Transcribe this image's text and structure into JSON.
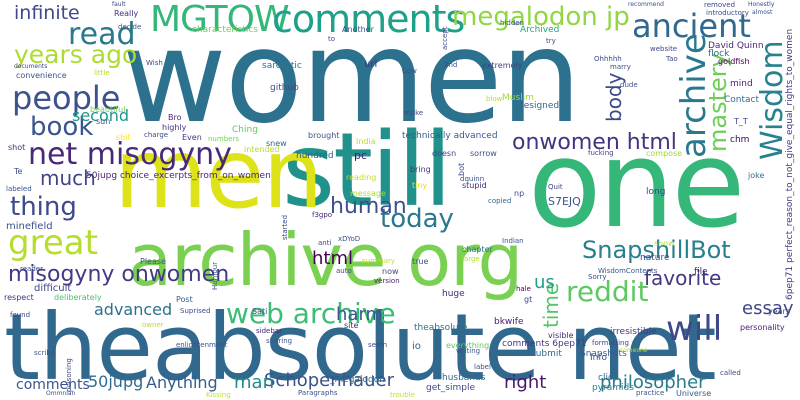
{
  "words": [
    {
      "text": "women",
      "color": "#2c728e"
    },
    {
      "text": "theabsolute net",
      "color": "#31688e"
    },
    {
      "text": "one",
      "color": "#35b779"
    },
    {
      "text": "still",
      "color": "#21918c"
    },
    {
      "text": "men",
      "color": "#dde318"
    },
    {
      "text": "archive org",
      "color": "#7ad151"
    },
    {
      "text": "MGTOW",
      "color": "#35b779"
    },
    {
      "text": "comments",
      "color": "#1fa088"
    },
    {
      "text": "megalodon jp",
      "color": "#90d743"
    },
    {
      "text": "read",
      "color": "#2a788e"
    },
    {
      "text": "ancient",
      "color": "#31688e"
    },
    {
      "text": "people",
      "color": "#3b528b"
    },
    {
      "text": "years ago",
      "color": "#addc30"
    },
    {
      "text": "infinite",
      "color": "#3e4989"
    },
    {
      "text": "book",
      "color": "#39568c"
    },
    {
      "text": "net misogyny",
      "color": "#482878"
    },
    {
      "text": "archive",
      "color": "#2a788e"
    },
    {
      "text": "Wisdom",
      "color": "#26828e"
    },
    {
      "text": "mastery",
      "color": "#6ece58"
    },
    {
      "text": "onwomen html",
      "color": "#46337f"
    },
    {
      "text": "thing",
      "color": "#3e4a89"
    },
    {
      "text": "much",
      "color": "#404688"
    },
    {
      "text": "great",
      "color": "#b5de2b"
    },
    {
      "text": "today",
      "color": "#2a778e"
    },
    {
      "text": "human",
      "color": "#3b528b"
    },
    {
      "text": "html",
      "color": "#440154"
    },
    {
      "text": "SnapshillBot",
      "color": "#27808e"
    },
    {
      "text": "reddit",
      "color": "#5ec962"
    },
    {
      "text": "misogyny onwomen",
      "color": "#443983"
    },
    {
      "text": "web archive",
      "color": "#3dbc74"
    },
    {
      "text": "will",
      "color": "#3e4989"
    },
    {
      "text": "favorite",
      "color": "#453781"
    },
    {
      "text": "essay",
      "color": "#414487"
    },
    {
      "text": "body",
      "color": "#3e4989"
    },
    {
      "text": "time",
      "color": "#52c569"
    },
    {
      "text": "advanced",
      "color": "#2c728e"
    },
    {
      "text": "harm",
      "color": "#38588c"
    },
    {
      "text": "us",
      "color": "#1f9e89"
    },
    {
      "text": "second",
      "color": "#1f968b"
    },
    {
      "text": "Anything",
      "color": "#365c8d"
    },
    {
      "text": "Schopenhauer",
      "color": "#3b528b"
    },
    {
      "text": "man",
      "color": "#238a8d"
    },
    {
      "text": "philosopher",
      "color": "#297b8e"
    },
    {
      "text": "right",
      "color": "#48186a"
    },
    {
      "text": "comments",
      "color": "#39558c"
    },
    {
      "text": "50jupg",
      "color": "#2f6b8e"
    },
    {
      "text": "50jupg choice_excerpts_from_on_women",
      "color": "#482475"
    },
    {
      "text": "minefield",
      "color": "#3b518b"
    },
    {
      "text": "difficult",
      "color": "#3f4788"
    },
    {
      "text": "github",
      "color": "#3b528b"
    },
    {
      "text": "sarcastic",
      "color": "#2d718e"
    },
    {
      "text": "characteristics",
      "color": "#75d054"
    },
    {
      "text": "Really",
      "color": "#46327e"
    },
    {
      "text": "url",
      "color": "#46327e"
    },
    {
      "text": "Another",
      "color": "#3a548c"
    },
    {
      "text": "Archived",
      "color": "#20a386"
    },
    {
      "text": "designed",
      "color": "#31688e"
    },
    {
      "text": "extremely",
      "color": "#414287"
    },
    {
      "text": "Muslim",
      "color": "#a2da37"
    },
    {
      "text": "David Quinn",
      "color": "#482878"
    },
    {
      "text": "Contact",
      "color": "#2e6e8e"
    },
    {
      "text": "flock",
      "color": "#2f6c8e"
    },
    {
      "text": "goldfish",
      "color": "#440154"
    },
    {
      "text": "S7EJQ",
      "color": "#3b528b"
    },
    {
      "text": "technically advanced",
      "color": "#38598c"
    },
    {
      "text": "pc",
      "color": "#481a6c"
    },
    {
      "text": "hundred",
      "color": "#355f8d"
    },
    {
      "text": "sorrow",
      "color": "#3b528b"
    },
    {
      "text": "bring",
      "color": "#46327e"
    },
    {
      "text": "stupid",
      "color": "#482475"
    },
    {
      "text": "chapter",
      "color": "#2c728e"
    },
    {
      "text": "nature",
      "color": "#3f4788"
    },
    {
      "text": "huge",
      "color": "#482878"
    },
    {
      "text": "theabsolute",
      "color": "#2e6e8e"
    },
    {
      "text": "bkwife",
      "color": "#482173"
    },
    {
      "text": "comments 6pep71",
      "color": "#443983"
    },
    {
      "text": "resubmit",
      "color": "#31688e"
    },
    {
      "text": "irresistible",
      "color": "#453781"
    },
    {
      "text": "6pep71 perfect_reason_to_not_give_equal_rights_to_women",
      "color": "#443a83"
    },
    {
      "text": "Sati",
      "color": "#3e4989"
    },
    {
      "text": "site",
      "color": "#482475"
    },
    {
      "text": "io",
      "color": "#33638d"
    },
    {
      "text": "Post",
      "color": "#365c8d"
    },
    {
      "text": "Please",
      "color": "#3b528b"
    },
    {
      "text": "deliberately",
      "color": "#4ac16d"
    },
    {
      "text": "respect",
      "color": "#46327e"
    },
    {
      "text": "convenience",
      "color": "#3b528b"
    },
    {
      "text": "beautiful",
      "color": "#73d056"
    },
    {
      "text": "shit",
      "color": "#fde725"
    },
    {
      "text": "Even",
      "color": "#46327e"
    },
    {
      "text": "Ching",
      "color": "#5ec962"
    },
    {
      "text": "Info",
      "color": "#3b528b"
    },
    {
      "text": "file",
      "color": "#482475"
    },
    {
      "text": "joke",
      "color": "#2c728e"
    },
    {
      "text": "chm",
      "color": "#440154"
    },
    {
      "text": "mind",
      "color": "#481f70"
    },
    {
      "text": "Snapshots",
      "color": "#38598c"
    },
    {
      "text": "click",
      "color": "#2f6b8e"
    },
    {
      "text": "pyramids",
      "color": "#26828e"
    },
    {
      "text": "Universe",
      "color": "#38598c"
    },
    {
      "text": "husbands",
      "color": "#31688e"
    },
    {
      "text": "get_simple",
      "color": "#3f4788"
    },
    {
      "text": "_megalodon",
      "color": "#31688e"
    },
    {
      "text": "everything",
      "color": "#5ec962"
    },
    {
      "text": "show",
      "color": "#b8de29"
    },
    {
      "text": "long",
      "color": "#3e4989"
    },
    {
      "text": "sun",
      "color": "#365c8d"
    },
    {
      "text": "tiny",
      "color": "#dde318"
    },
    {
      "text": "message",
      "color": "#a5db36"
    },
    {
      "text": "reading",
      "color": "#c2df23"
    },
    {
      "text": "India",
      "color": "#b5de2b"
    },
    {
      "text": "doesn",
      "color": "#3e4989"
    },
    {
      "text": "brought",
      "color": "#3b528b"
    },
    {
      "text": "snew",
      "color": "#33638d"
    },
    {
      "text": "Bro",
      "color": "#482475"
    },
    {
      "text": "highly",
      "color": "#46327e"
    },
    {
      "text": "charge",
      "color": "#3e4989"
    },
    {
      "text": "numbers",
      "color": "#7ad151"
    },
    {
      "text": "intended",
      "color": "#b5de2b"
    },
    {
      "text": "Te",
      "color": "#3e4989"
    },
    {
      "text": "shot",
      "color": "#46327e"
    },
    {
      "text": "fucking",
      "color": "#3f4788"
    },
    {
      "text": "compose",
      "color": "#a0da39"
    },
    {
      "text": "T_T",
      "color": "#3e4989"
    },
    {
      "text": "years",
      "color": "#3b528b"
    },
    {
      "text": "personality",
      "color": "#482475"
    },
    {
      "text": "Sorry",
      "color": "#3e4989"
    },
    {
      "text": "WisdomContents",
      "color": "#38598c"
    },
    {
      "text": "visible",
      "color": "#482475"
    },
    {
      "text": "gt",
      "color": "#3e4989"
    },
    {
      "text": "hale",
      "color": "#440154"
    },
    {
      "text": "Indian",
      "color": "#3b528b"
    },
    {
      "text": "Quit",
      "color": "#3e4989"
    },
    {
      "text": "np",
      "color": "#3e4989"
    },
    {
      "text": "copied",
      "color": "#31688e"
    },
    {
      "text": "true",
      "color": "#3b528b"
    },
    {
      "text": "now",
      "color": "#3e4989"
    },
    {
      "text": "version",
      "color": "#481f70"
    },
    {
      "text": "large",
      "color": "#b8de29"
    },
    {
      "text": "summary",
      "color": "#c2df23"
    },
    {
      "text": "f3gpo",
      "color": "#482475"
    },
    {
      "text": "xDYoD",
      "color": "#3b528b"
    },
    {
      "text": "anti",
      "color": "#3e4989"
    },
    {
      "text": "auto",
      "color": "#3e4989"
    },
    {
      "text": "sharing",
      "color": "#3b528b"
    },
    {
      "text": "sidebar",
      "color": "#482475"
    },
    {
      "text": "Suprised",
      "color": "#3e4989"
    },
    {
      "text": "owner",
      "color": "#b5de2b"
    },
    {
      "text": "enlightenment",
      "color": "#3b528b"
    },
    {
      "text": "Kissing",
      "color": "#c2df23"
    },
    {
      "text": "found",
      "color": "#3e4989"
    },
    {
      "text": "scribd",
      "color": "#3b528b"
    },
    {
      "text": "Ommnian",
      "color": "#3e4989"
    },
    {
      "text": "reader",
      "color": "#3e4989"
    },
    {
      "text": "labeled",
      "color": "#3b528b"
    },
    {
      "text": "trouble",
      "color": "#c2df23"
    },
    {
      "text": "Paragraphs",
      "color": "#3b528b"
    },
    {
      "text": "called",
      "color": "#3e4989"
    },
    {
      "text": "practice",
      "color": "#3b528b"
    },
    {
      "text": "someone",
      "color": "#b5de2b"
    },
    {
      "text": "formatting",
      "color": "#3e4989"
    },
    {
      "text": "label",
      "color": "#3e4989"
    },
    {
      "text": "writing",
      "color": "#3b528b"
    },
    {
      "text": "seem",
      "color": "#3e4989"
    },
    {
      "text": "Wish",
      "color": "#3e4989"
    },
    {
      "text": "decide",
      "color": "#3b528b"
    },
    {
      "text": "fault",
      "color": "#3e4989"
    },
    {
      "text": "Cow",
      "color": "#3b528b"
    },
    {
      "text": "2nd",
      "color": "#3e4989"
    },
    {
      "text": "make",
      "color": "#3e4989"
    },
    {
      "text": "blow",
      "color": "#b5de2b"
    },
    {
      "text": "hidden",
      "color": "#3b528b"
    },
    {
      "text": "Ohhhhh",
      "color": "#3e4989"
    },
    {
      "text": "marry",
      "color": "#3b528b"
    },
    {
      "text": "removed",
      "color": "#3e4989"
    },
    {
      "text": "introductory",
      "color": "#3b528b"
    },
    {
      "text": "website",
      "color": "#3e4989"
    },
    {
      "text": "Tao",
      "color": "#3e4989"
    },
    {
      "text": "dude",
      "color": "#3b528b"
    },
    {
      "text": "try",
      "color": "#3e4989"
    },
    {
      "text": "almost",
      "color": "#3b528b"
    },
    {
      "text": "Honestly",
      "color": "#3e4989"
    },
    {
      "text": "recommend",
      "color": "#3b528b"
    },
    {
      "text": "little",
      "color": "#b5de2b"
    },
    {
      "text": "documents",
      "color": "#3e4989"
    },
    {
      "text": "to",
      "color": "#3e4989"
    },
    {
      "text": "accept",
      "color": "#3e4989"
    },
    {
      "text": "bot",
      "color": "#3e4989"
    },
    {
      "text": "dquinn",
      "color": "#3b528b"
    },
    {
      "text": "poisoning",
      "color": "#3e4989"
    },
    {
      "text": "Humour",
      "color": "#3b528b"
    },
    {
      "text": "started",
      "color": "#3e4989"
    }
  ]
}
